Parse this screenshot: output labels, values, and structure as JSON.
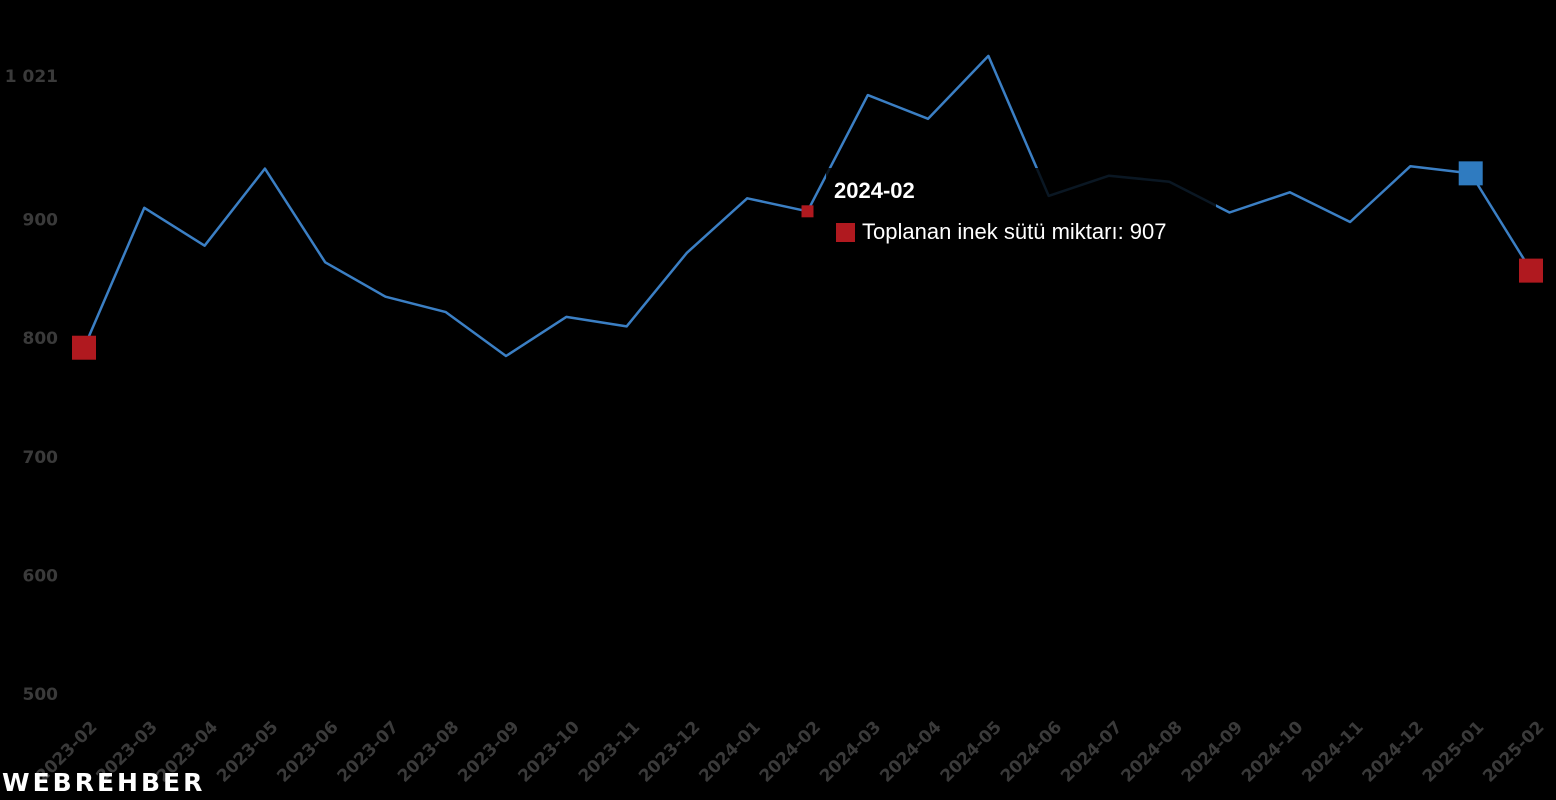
{
  "chart_data": {
    "type": "line",
    "x": [
      "2023-02",
      "2023-03",
      "2023-04",
      "2023-05",
      "2023-06",
      "2023-07",
      "2023-08",
      "2023-09",
      "2023-10",
      "2023-11",
      "2023-12",
      "2024-01",
      "2024-02",
      "2024-03",
      "2024-04",
      "2024-05",
      "2024-06",
      "2024-07",
      "2024-08",
      "2024-09",
      "2024-10",
      "2024-11",
      "2024-12",
      "2025-01",
      "2025-02"
    ],
    "series": [
      {
        "name": "Toplanan inek sütü miktarı",
        "values": [
          792,
          910,
          878,
          943,
          864,
          835,
          822,
          785,
          818,
          810,
          872,
          918,
          907,
          1005,
          985,
          1038,
          920,
          937,
          932,
          906,
          923,
          898,
          945,
          939,
          857
        ],
        "color": "#3b7fc4"
      }
    ],
    "yticks": [
      500,
      600,
      700,
      800,
      900
    ],
    "ytick_labels": [
      "500",
      "600",
      "700",
      "800",
      "900"
    ],
    "ymax_label": "1 021",
    "ylim": [
      495,
      1043
    ],
    "highlight_min_color": "#b0191f",
    "highlight_max_color": "#2f7bc0",
    "highlight_points": [
      {
        "category": "2023-02",
        "color": "#b0191f"
      },
      {
        "category": "2025-01",
        "color": "#2f7bc0"
      },
      {
        "category": "2025-02",
        "color": "#b0191f"
      }
    ],
    "hover": {
      "category": "2024-02",
      "color": "#b0191f"
    },
    "grid": false,
    "legend": "none"
  },
  "tooltip": {
    "title": "2024-02",
    "series_label": "Toplanan inek sütü miktarı: 907",
    "swatch_color": "#b0191f"
  },
  "watermark": {
    "text": "WEBREHBER"
  }
}
